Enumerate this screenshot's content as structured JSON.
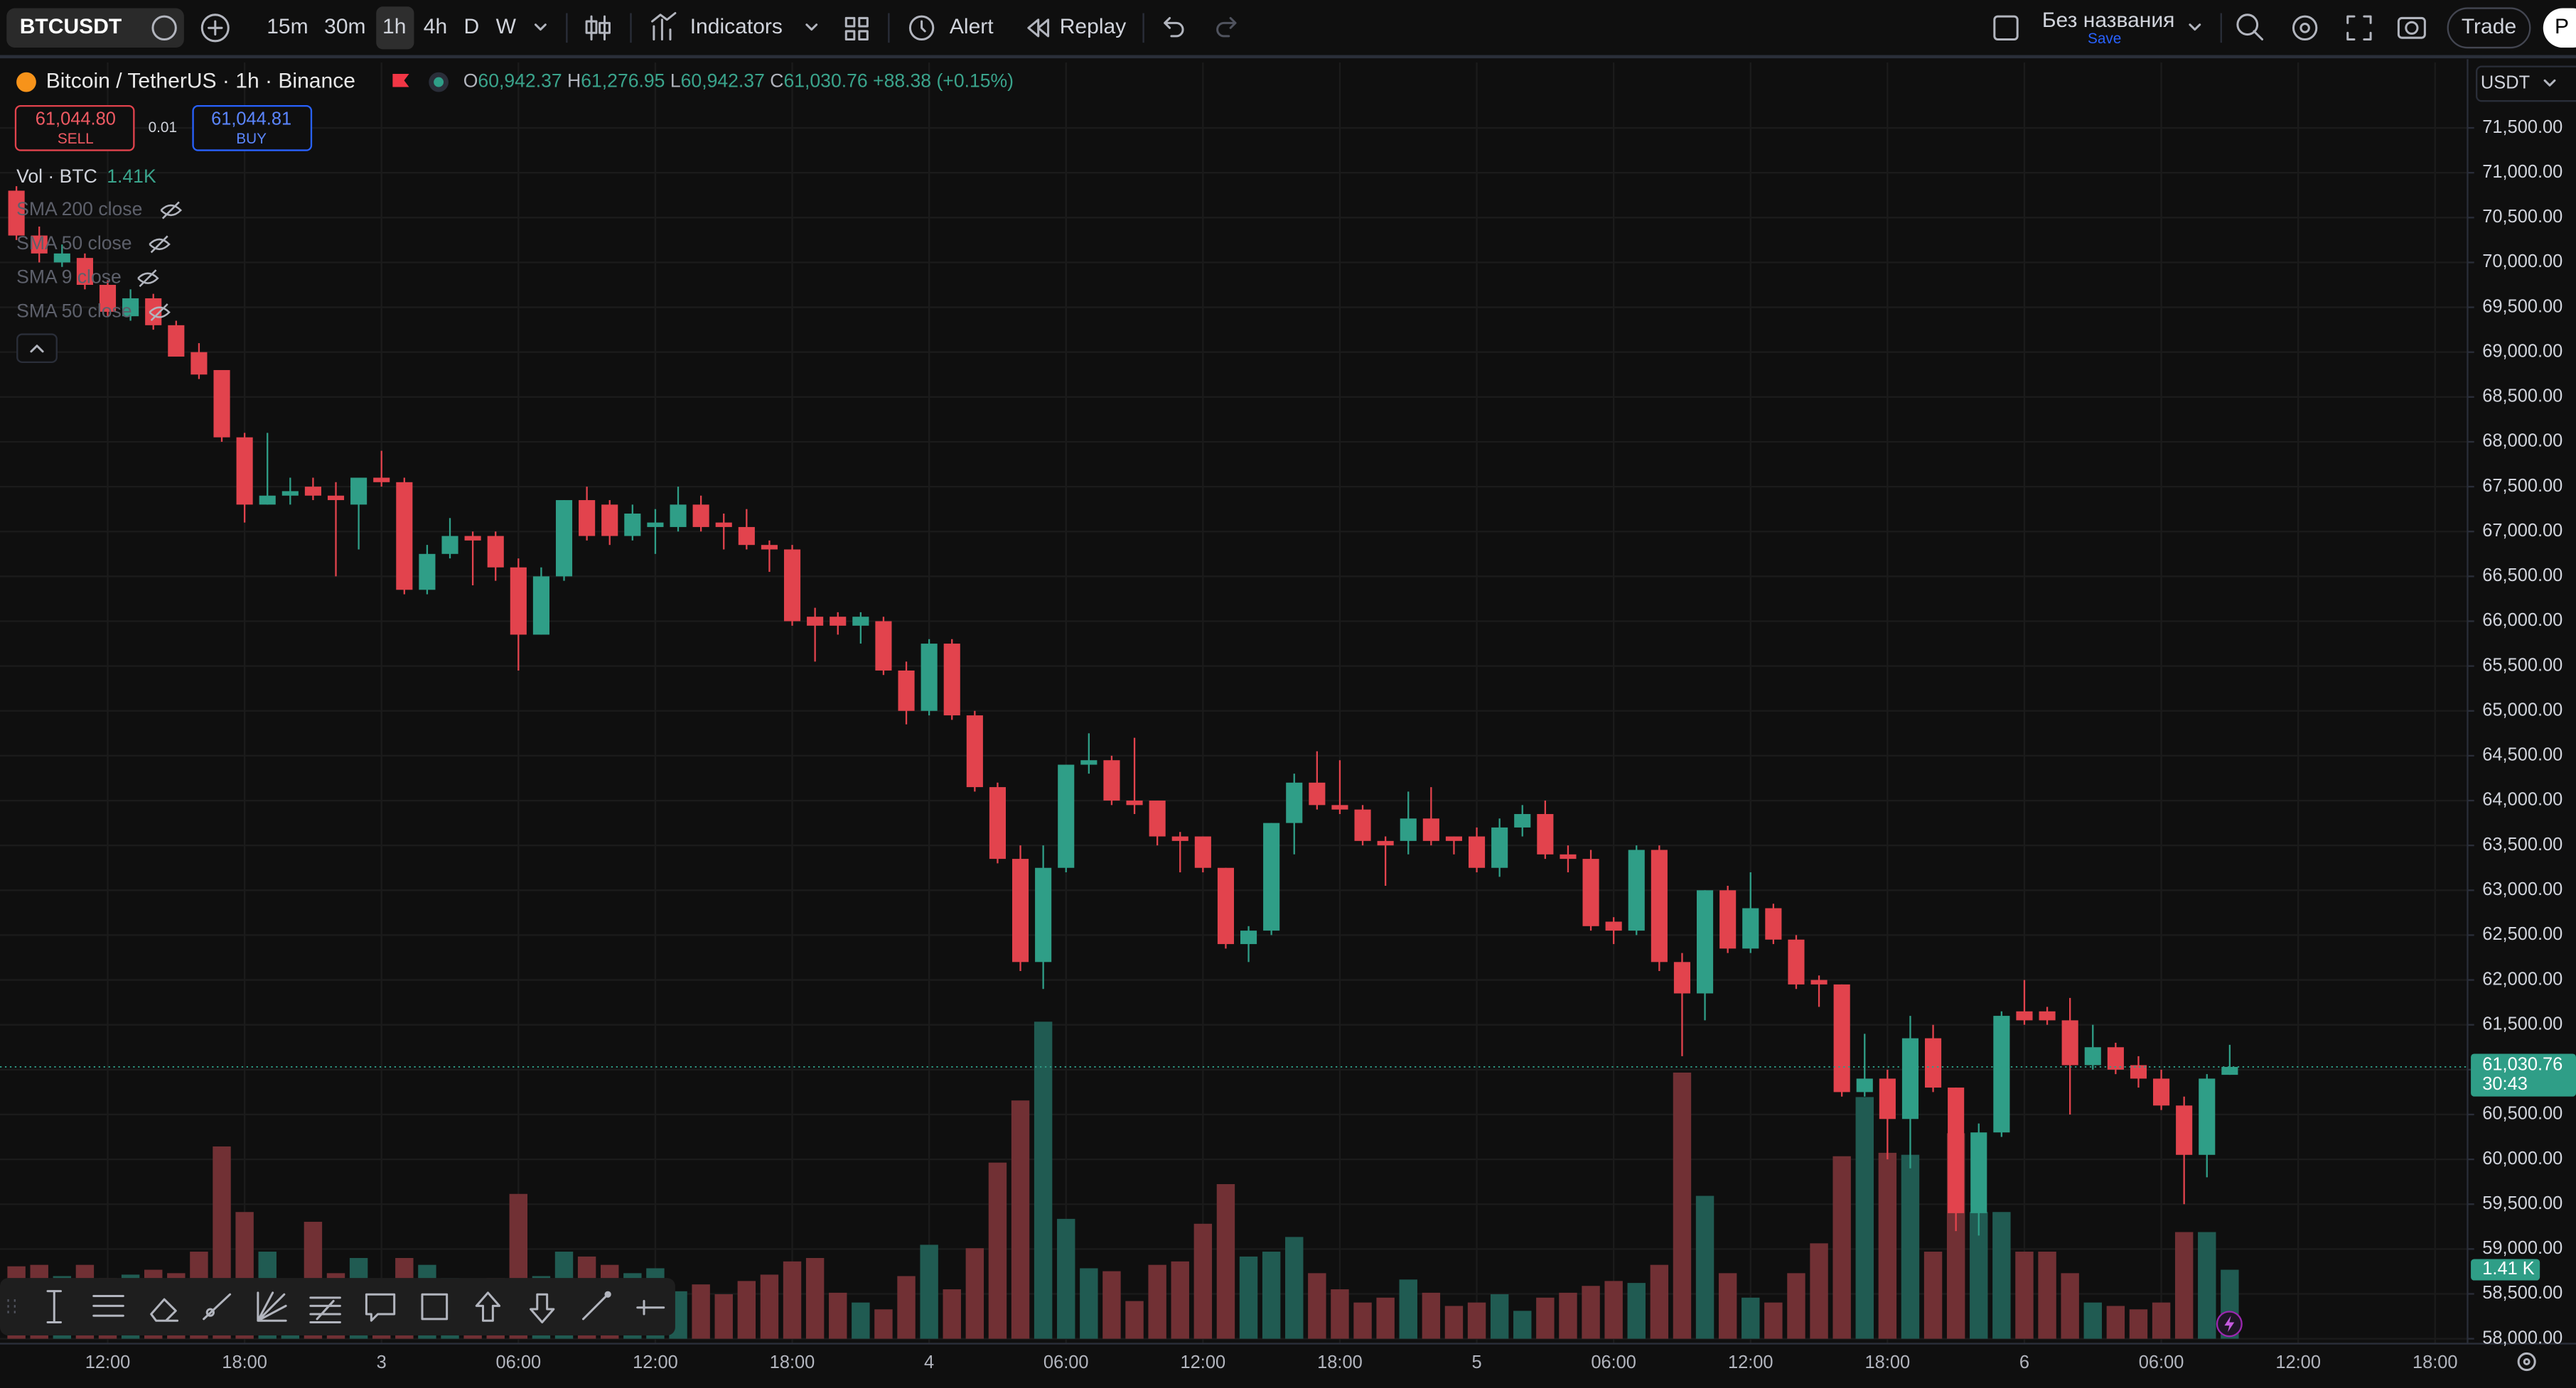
{
  "toolbar": {
    "symbol": "BTCUSDT",
    "intervals": [
      "15m",
      "30m",
      "1h",
      "4h",
      "D",
      "W"
    ],
    "indicators": "Indicators",
    "alert": "Alert",
    "replay": "Replay",
    "layout_name": "Без названия",
    "save": "Save",
    "trade": "Trade",
    "publish": "P"
  },
  "legend": {
    "title": "Bitcoin / TetherUS · 1h · Binance",
    "ohlc": [
      {
        "key": "O",
        "value": "60,942.37"
      },
      {
        "key": "H",
        "value": "61,276.95"
      },
      {
        "key": "L",
        "value": "60,942.37"
      },
      {
        "key": "C",
        "value": "61,030.76"
      }
    ],
    "change": "+88.38 (+0.15%)",
    "sell": {
      "price": "61,044.80",
      "label": "SELL"
    },
    "spread": "0.01",
    "buy": {
      "price": "61,044.81",
      "label": "BUY"
    },
    "volume": {
      "name": "Vol · BTC",
      "value": "1.41K"
    },
    "studies": [
      "SMA 200 close",
      "SMA 50 close",
      "SMA 9 close",
      "SMA 50 close"
    ]
  },
  "currency": "USDT",
  "chart_data": {
    "type": "candlestick",
    "categories": [
      null,
      null,
      null,
      null,
      "12:00",
      null,
      null,
      null,
      null,
      null,
      "18:00",
      null,
      null,
      null,
      null,
      null,
      "3",
      null,
      null,
      null,
      null,
      null,
      "06:00",
      null,
      null,
      null,
      null,
      null,
      "12:00",
      null,
      null,
      null,
      null,
      null,
      "18:00",
      null,
      null,
      null,
      null,
      null,
      "4",
      null,
      null,
      null,
      null,
      null,
      "06:00",
      null,
      null,
      null,
      null,
      null,
      "12:00",
      null,
      null,
      null,
      null,
      null,
      "18:00",
      null,
      null,
      null,
      null,
      null,
      "5",
      null,
      null,
      null,
      null,
      null,
      "06:00",
      null,
      null,
      null,
      null,
      null,
      "12:00",
      null,
      null,
      null,
      null,
      null,
      "18:00",
      null,
      null,
      null,
      null,
      null,
      "6",
      null,
      null,
      null,
      null,
      null,
      "06:00",
      null,
      null,
      null,
      null,
      null,
      "12:00",
      null,
      null,
      null,
      null,
      null,
      "18:00"
    ],
    "open": [
      70800,
      70300,
      70000,
      70050,
      69750,
      69400,
      69600,
      69300,
      69000,
      68800,
      68050,
      67300,
      67400,
      67500,
      67400,
      67300,
      67600,
      67550,
      66350,
      66750,
      66950,
      66950,
      66600,
      65850,
      66500,
      67350,
      67300,
      66950,
      67050,
      67050,
      67300,
      67100,
      67050,
      66850,
      66800,
      66050,
      66050,
      65950,
      66000,
      65450,
      65000,
      65750,
      64950,
      64150,
      63350,
      62200,
      63250,
      64400,
      64450,
      64000,
      64000,
      63600,
      63600,
      63250,
      62400,
      62550,
      63750,
      64200,
      63950,
      63900,
      63550,
      63550,
      63800,
      63600,
      63600,
      63250,
      63700,
      63850,
      63400,
      63350,
      62650,
      62550,
      63450,
      62200,
      61850,
      63000,
      62350,
      62800,
      62450,
      62000,
      61950,
      60750,
      60900,
      60450,
      61350,
      60800,
      59400,
      60300,
      61650,
      61650,
      61550,
      61050,
      61250,
      61050,
      60900,
      60600,
      60050,
      60942.37,
      null,
      null,
      null,
      null,
      null,
      null,
      null,
      null,
      null
    ],
    "high": [
      70850,
      70400,
      70200,
      70100,
      69800,
      69700,
      69650,
      69350,
      69100,
      68800,
      68100,
      68100,
      67600,
      67600,
      67550,
      67600,
      67900,
      67600,
      66850,
      67150,
      67000,
      67000,
      66700,
      66600,
      67350,
      67500,
      67350,
      67300,
      67250,
      67500,
      67400,
      67200,
      67250,
      66900,
      66850,
      66150,
      66100,
      66100,
      66050,
      65550,
      65800,
      65800,
      65000,
      64200,
      63500,
      63500,
      64400,
      64750,
      64500,
      64700,
      64000,
      63650,
      63600,
      63250,
      62600,
      63750,
      64300,
      64550,
      64450,
      63950,
      63600,
      64100,
      64150,
      63600,
      63700,
      63800,
      63950,
      64000,
      63500,
      63450,
      62700,
      63500,
      63500,
      62300,
      63000,
      63050,
      63200,
      62850,
      62500,
      62050,
      61950,
      61400,
      61000,
      61600,
      61500,
      60800,
      60400,
      61650,
      62000,
      61700,
      61800,
      61500,
      61300,
      61150,
      61000,
      60700,
      60950,
      61276.95,
      null,
      null,
      null,
      null,
      null,
      null,
      null,
      null,
      null
    ],
    "low": [
      70250,
      70000,
      69950,
      69700,
      69400,
      69350,
      69250,
      68950,
      68700,
      68000,
      67100,
      67300,
      67300,
      67350,
      66500,
      66800,
      67500,
      66300,
      66300,
      66700,
      66400,
      66450,
      65450,
      65850,
      66450,
      66900,
      66850,
      66900,
      66750,
      67000,
      67000,
      66800,
      66800,
      66550,
      65950,
      65550,
      65850,
      65750,
      65400,
      64850,
      64950,
      64900,
      64100,
      63300,
      62100,
      61900,
      63200,
      64300,
      63950,
      63850,
      63500,
      63200,
      63200,
      62350,
      62200,
      62500,
      63400,
      63900,
      63850,
      63500,
      63050,
      63400,
      63500,
      63400,
      63200,
      63150,
      63600,
      63350,
      63200,
      62550,
      62400,
      62500,
      62100,
      61150,
      61550,
      62300,
      62300,
      62400,
      61900,
      61700,
      60700,
      60700,
      60000,
      59900,
      60750,
      59200,
      59150,
      60250,
      61500,
      61500,
      60500,
      61000,
      60950,
      60800,
      60550,
      59500,
      59800,
      60942.37,
      null,
      null,
      null,
      null,
      null,
      null,
      null,
      null,
      null
    ],
    "close": [
      70300,
      70100,
      70100,
      69750,
      69450,
      69600,
      69300,
      68950,
      68750,
      68050,
      67300,
      67400,
      67450,
      67400,
      67350,
      67600,
      67550,
      66350,
      66750,
      66950,
      66900,
      66600,
      65850,
      66500,
      67350,
      66950,
      66950,
      67200,
      67100,
      67300,
      67050,
      67050,
      66850,
      66800,
      66000,
      65950,
      65950,
      66050,
      65450,
      65000,
      65750,
      64950,
      64150,
      63350,
      62200,
      63250,
      64400,
      64450,
      64000,
      63950,
      63600,
      63550,
      63250,
      62400,
      62550,
      63750,
      64200,
      63950,
      63900,
      63550,
      63500,
      63800,
      63550,
      63550,
      63250,
      63700,
      63850,
      63400,
      63350,
      62600,
      62550,
      63450,
      62200,
      61850,
      63000,
      62350,
      62800,
      62450,
      61950,
      61950,
      60750,
      60900,
      60450,
      61350,
      60800,
      59400,
      60300,
      61600,
      61550,
      61550,
      61050,
      61250,
      61000,
      60900,
      60600,
      60050,
      60900,
      61030.76,
      null,
      null,
      null,
      null,
      null,
      null,
      null,
      null,
      null
    ],
    "volume": [
      1480,
      1510,
      1280,
      1510,
      1240,
      1310,
      1410,
      1340,
      1780,
      3930,
      2590,
      1780,
      1180,
      2390,
      1340,
      1650,
      1180,
      1650,
      1510,
      1240,
      1180,
      1240,
      2960,
      1280,
      1780,
      1680,
      1510,
      1340,
      1440,
      970,
      1110,
      910,
      1180,
      1310,
      1580,
      1650,
      940,
      740,
      600,
      1280,
      1920,
      1010,
      1850,
      3600,
      4870,
      6480,
      2450,
      1440,
      1380,
      770,
      1510,
      1580,
      2350,
      3160,
      1680,
      1780,
      2080,
      1340,
      1010,
      740,
      840,
      1210,
      940,
      670,
      740,
      910,
      570,
      840,
      940,
      1080,
      1180,
      1140,
      1510,
      5440,
      2920,
      1340,
      840,
      740,
      1340,
      1950,
      3730,
      4940,
      3800,
      3760,
      1780,
      4200,
      2590,
      2590,
      1780,
      1780,
      1340,
      740,
      670,
      600,
      740,
      2180,
      2180,
      1410,
      null,
      null,
      null,
      null,
      null,
      null,
      null,
      null,
      null
    ],
    "up_color": "#2f9e87",
    "down_color": "#e2434d",
    "up_volume_color": "#205b52",
    "down_volume_color": "#713034",
    "ylim": [
      58000,
      72230
    ],
    "yticks": [
      {
        "value": 58000,
        "label": "58,000.00"
      },
      {
        "value": 58500,
        "label": "58,500.00"
      },
      {
        "value": 59000,
        "label": "59,000.00"
      },
      {
        "value": 59500,
        "label": "59,500.00"
      },
      {
        "value": 60000,
        "label": "60,000.00"
      },
      {
        "value": 60500,
        "label": "60,500.00"
      },
      {
        "value": 61000,
        "label": "61,000.00"
      },
      {
        "value": 61500,
        "label": "61,500.00"
      },
      {
        "value": 62000,
        "label": "62,000.00"
      },
      {
        "value": 62500,
        "label": "62,500.00"
      },
      {
        "value": 63000,
        "label": "63,000.00"
      },
      {
        "value": 63500,
        "label": "63,500.00"
      },
      {
        "value": 64000,
        "label": "64,000.00"
      },
      {
        "value": 64500,
        "label": "64,500.00"
      },
      {
        "value": 65000,
        "label": "65,000.00"
      },
      {
        "value": 65500,
        "label": "65,500.00"
      },
      {
        "value": 66000,
        "label": "66,000.00"
      },
      {
        "value": 66500,
        "label": "66,500.00"
      },
      {
        "value": 67000,
        "label": "67,000.00"
      },
      {
        "value": 67500,
        "label": "67,500.00"
      },
      {
        "value": 68000,
        "label": "68,000.00"
      },
      {
        "value": 68500,
        "label": "68,500.00"
      },
      {
        "value": 69000,
        "label": "69,000.00"
      },
      {
        "value": 69500,
        "label": "69,500.00"
      },
      {
        "value": 70000,
        "label": "70,000.00"
      },
      {
        "value": 70500,
        "label": "70,500.00"
      },
      {
        "value": 71000,
        "label": "71,000.00"
      },
      {
        "value": 71500,
        "label": "71,500.00"
      }
    ],
    "grid": true,
    "last_price": {
      "value": 61030.76,
      "label": "61,030.76"
    },
    "countdown": "30:43",
    "volume_label": {
      "value": 1410,
      "label": "1.41 K"
    }
  }
}
